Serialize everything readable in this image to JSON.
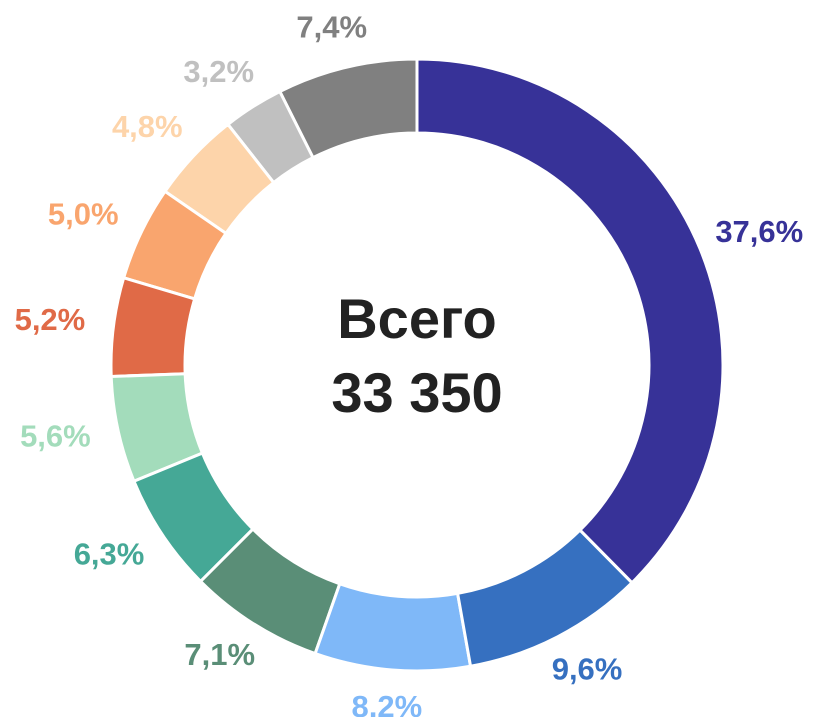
{
  "chart_data": {
    "type": "donut",
    "center_text": [
      "Всего",
      "33 350"
    ],
    "values": [
      37.6,
      9.6,
      8.2,
      7.1,
      6.3,
      5.6,
      5.2,
      5.0,
      4.8,
      3.2,
      7.4
    ],
    "value_labels": [
      "37,6%",
      "9,6%",
      "8,2%",
      "7,1%",
      "6,3%",
      "5,6%",
      "5,2%",
      "5,0%",
      "4,8%",
      "3,2%",
      "7,4%"
    ],
    "colors": [
      "#373298",
      "#3670c0",
      "#7fb8f8",
      "#5a8e77",
      "#45a896",
      "#a3dcbb",
      "#e06a47",
      "#f9a56e",
      "#fdd4aa",
      "#c0c0c0",
      "#808080"
    ]
  }
}
